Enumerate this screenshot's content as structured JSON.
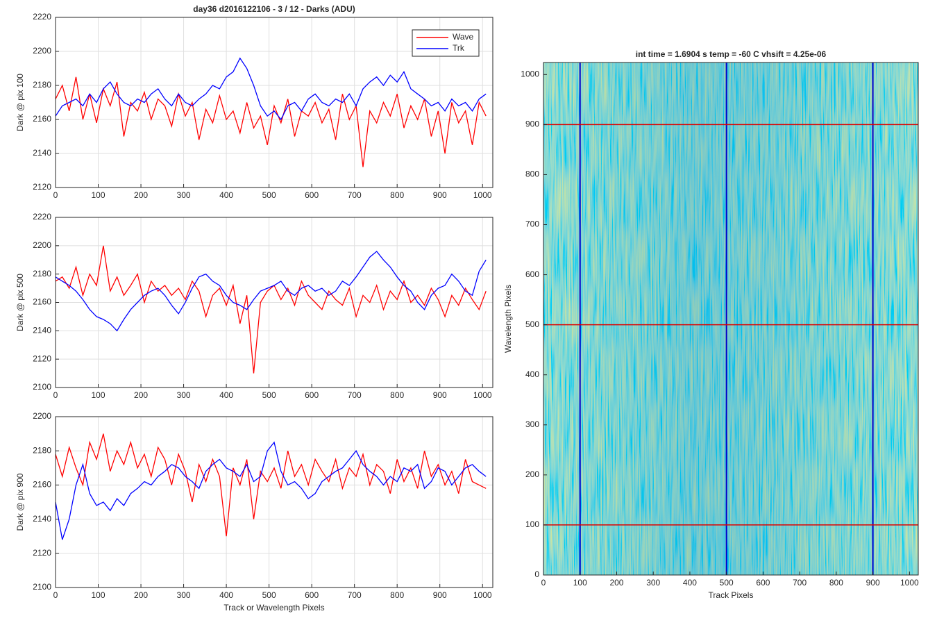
{
  "chart_data": [
    {
      "type": "line",
      "title": "day36 d2016122106 - 3 / 12 - Darks (ADU)",
      "ylabel": "Dark @ pix 100",
      "x": [
        0,
        16,
        32,
        48,
        64,
        80,
        96,
        112,
        128,
        144,
        160,
        176,
        192,
        208,
        224,
        240,
        256,
        272,
        288,
        304,
        320,
        336,
        352,
        368,
        384,
        400,
        416,
        432,
        448,
        464,
        480,
        496,
        512,
        528,
        544,
        560,
        576,
        592,
        608,
        624,
        640,
        656,
        672,
        688,
        704,
        720,
        736,
        752,
        768,
        784,
        800,
        816,
        832,
        848,
        864,
        880,
        896,
        912,
        928,
        944,
        960,
        976,
        992,
        1008
      ],
      "series": [
        {
          "name": "Wave",
          "color": "#ff0000",
          "values": [
            2172,
            2180,
            2165,
            2185,
            2160,
            2175,
            2158,
            2178,
            2168,
            2182,
            2150,
            2170,
            2165,
            2176,
            2160,
            2172,
            2168,
            2156,
            2175,
            2162,
            2170,
            2148,
            2166,
            2158,
            2174,
            2160,
            2165,
            2152,
            2170,
            2155,
            2162,
            2145,
            2168,
            2158,
            2172,
            2150,
            2165,
            2162,
            2170,
            2158,
            2166,
            2148,
            2175,
            2160,
            2168,
            2132,
            2165,
            2158,
            2170,
            2162,
            2175,
            2155,
            2168,
            2160,
            2172,
            2150,
            2165,
            2140,
            2170,
            2158,
            2165,
            2145,
            2170,
            2162
          ]
        },
        {
          "name": "Trk",
          "color": "#0000ff",
          "values": [
            2162,
            2168,
            2170,
            2172,
            2168,
            2175,
            2170,
            2178,
            2182,
            2175,
            2170,
            2168,
            2172,
            2170,
            2175,
            2178,
            2172,
            2168,
            2175,
            2170,
            2168,
            2172,
            2175,
            2180,
            2178,
            2185,
            2188,
            2196,
            2190,
            2180,
            2168,
            2162,
            2165,
            2160,
            2168,
            2170,
            2165,
            2172,
            2175,
            2170,
            2168,
            2172,
            2170,
            2175,
            2168,
            2178,
            2182,
            2185,
            2180,
            2186,
            2182,
            2188,
            2178,
            2175,
            2172,
            2168,
            2170,
            2165,
            2172,
            2168,
            2170,
            2165,
            2172,
            2175
          ]
        }
      ],
      "xlim": [
        0,
        1024
      ],
      "xticks": [
        0,
        100,
        200,
        300,
        400,
        500,
        600,
        700,
        800,
        900,
        1000
      ],
      "ylim": [
        2120,
        2220
      ],
      "yticks": [
        2120,
        2140,
        2160,
        2180,
        2200,
        2220
      ],
      "grid": true,
      "legend": "upper right"
    },
    {
      "type": "line",
      "ylabel": "Dark @ pix 500",
      "x": [
        0,
        16,
        32,
        48,
        64,
        80,
        96,
        112,
        128,
        144,
        160,
        176,
        192,
        208,
        224,
        240,
        256,
        272,
        288,
        304,
        320,
        336,
        352,
        368,
        384,
        400,
        416,
        432,
        448,
        464,
        480,
        496,
        512,
        528,
        544,
        560,
        576,
        592,
        608,
        624,
        640,
        656,
        672,
        688,
        704,
        720,
        736,
        752,
        768,
        784,
        800,
        816,
        832,
        848,
        864,
        880,
        896,
        912,
        928,
        944,
        960,
        976,
        992,
        1008
      ],
      "series": [
        {
          "color": "#ff0000",
          "values": [
            2175,
            2178,
            2170,
            2185,
            2165,
            2180,
            2172,
            2200,
            2168,
            2178,
            2165,
            2172,
            2180,
            2160,
            2175,
            2168,
            2172,
            2165,
            2170,
            2162,
            2175,
            2168,
            2150,
            2165,
            2170,
            2158,
            2172,
            2145,
            2165,
            2110,
            2160,
            2168,
            2172,
            2162,
            2170,
            2158,
            2175,
            2165,
            2160,
            2155,
            2168,
            2162,
            2158,
            2170,
            2150,
            2165,
            2160,
            2172,
            2155,
            2168,
            2162,
            2175,
            2160,
            2165,
            2158,
            2170,
            2162,
            2150,
            2165,
            2158,
            2170,
            2162,
            2155,
            2168
          ]
        },
        {
          "color": "#0000ff",
          "values": [
            2178,
            2175,
            2172,
            2168,
            2162,
            2155,
            2150,
            2148,
            2145,
            2140,
            2148,
            2155,
            2160,
            2165,
            2168,
            2170,
            2165,
            2158,
            2152,
            2160,
            2170,
            2178,
            2180,
            2175,
            2172,
            2165,
            2160,
            2158,
            2155,
            2162,
            2168,
            2170,
            2172,
            2175,
            2168,
            2165,
            2170,
            2172,
            2168,
            2170,
            2165,
            2168,
            2175,
            2172,
            2178,
            2185,
            2192,
            2196,
            2190,
            2185,
            2178,
            2172,
            2168,
            2160,
            2155,
            2165,
            2170,
            2172,
            2180,
            2175,
            2168,
            2165,
            2182,
            2190
          ]
        }
      ],
      "xlim": [
        0,
        1024
      ],
      "xticks": [
        0,
        100,
        200,
        300,
        400,
        500,
        600,
        700,
        800,
        900,
        1000
      ],
      "ylim": [
        2100,
        2220
      ],
      "yticks": [
        2100,
        2120,
        2140,
        2160,
        2180,
        2200,
        2220
      ],
      "grid": true
    },
    {
      "type": "line",
      "ylabel": "Dark @ pix 900",
      "xlabel": "Track or Wavelength Pixels",
      "x": [
        0,
        16,
        32,
        48,
        64,
        80,
        96,
        112,
        128,
        144,
        160,
        176,
        192,
        208,
        224,
        240,
        256,
        272,
        288,
        304,
        320,
        336,
        352,
        368,
        384,
        400,
        416,
        432,
        448,
        464,
        480,
        496,
        512,
        528,
        544,
        560,
        576,
        592,
        608,
        624,
        640,
        656,
        672,
        688,
        704,
        720,
        736,
        752,
        768,
        784,
        800,
        816,
        832,
        848,
        864,
        880,
        896,
        912,
        928,
        944,
        960,
        976,
        992,
        1008
      ],
      "series": [
        {
          "color": "#ff0000",
          "values": [
            2178,
            2165,
            2182,
            2170,
            2160,
            2185,
            2175,
            2190,
            2168,
            2180,
            2172,
            2185,
            2170,
            2178,
            2165,
            2182,
            2175,
            2160,
            2178,
            2168,
            2150,
            2172,
            2162,
            2175,
            2165,
            2130,
            2170,
            2160,
            2175,
            2140,
            2168,
            2162,
            2170,
            2158,
            2180,
            2165,
            2172,
            2160,
            2175,
            2168,
            2162,
            2175,
            2158,
            2170,
            2165,
            2178,
            2160,
            2172,
            2168,
            2155,
            2175,
            2162,
            2170,
            2158,
            2180,
            2165,
            2172,
            2160,
            2168,
            2155,
            2175,
            2162,
            2160,
            2158
          ]
        },
        {
          "color": "#0000ff",
          "values": [
            2150,
            2128,
            2140,
            2160,
            2172,
            2155,
            2148,
            2150,
            2145,
            2152,
            2148,
            2155,
            2158,
            2162,
            2160,
            2165,
            2168,
            2172,
            2170,
            2165,
            2162,
            2158,
            2168,
            2172,
            2175,
            2170,
            2168,
            2165,
            2172,
            2162,
            2165,
            2180,
            2185,
            2168,
            2160,
            2162,
            2158,
            2152,
            2155,
            2162,
            2165,
            2168,
            2170,
            2175,
            2180,
            2172,
            2168,
            2165,
            2160,
            2165,
            2162,
            2170,
            2168,
            2172,
            2158,
            2162,
            2170,
            2168,
            2160,
            2165,
            2170,
            2172,
            2168,
            2165
          ]
        }
      ],
      "xlim": [
        0,
        1024
      ],
      "xticks": [
        0,
        100,
        200,
        300,
        400,
        500,
        600,
        700,
        800,
        900,
        1000
      ],
      "ylim": [
        2100,
        2200
      ],
      "yticks": [
        2100,
        2120,
        2140,
        2160,
        2180,
        2200
      ],
      "grid": true
    },
    {
      "type": "heatmap",
      "title": "int time = 1.6904 s    temp = -60 C    vhsift = 4.25e-06",
      "xlabel": "Track Pixels",
      "ylabel": "Wavelength Pixels",
      "xlim": [
        0,
        1024
      ],
      "xticks": [
        0,
        100,
        200,
        300,
        400,
        500,
        600,
        700,
        800,
        900,
        1000
      ],
      "ylim": [
        0,
        1024
      ],
      "yticks": [
        0,
        100,
        200,
        300,
        400,
        500,
        600,
        700,
        800,
        900,
        1000
      ],
      "vlines": [
        100,
        500,
        900
      ],
      "vline_color": "#0000cc",
      "hlines": [
        100,
        500,
        900
      ],
      "hline_color": "#dd0000"
    }
  ]
}
